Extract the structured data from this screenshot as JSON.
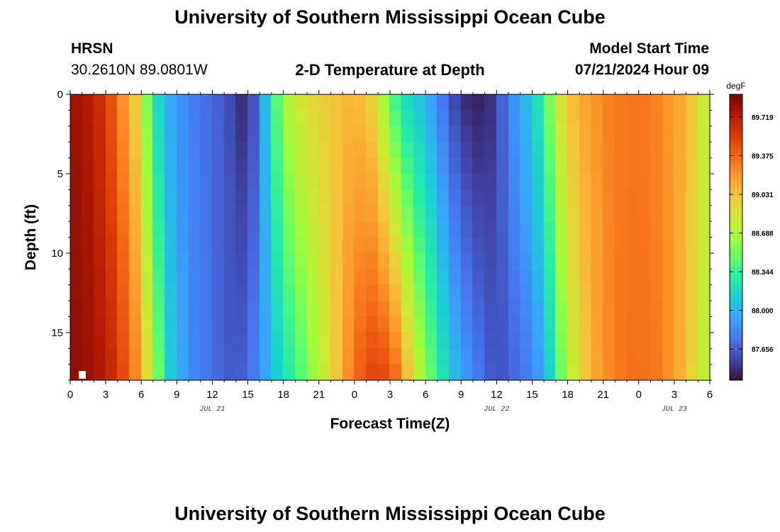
{
  "header": {
    "title": "University of Southern Mississippi Ocean Cube",
    "station": "HRSN",
    "coords": "30.2610N  89.0801W",
    "plot_title": "2-D Temperature at Depth",
    "model_label": "Model Start Time",
    "model_time": "07/21/2024 Hour 09"
  },
  "footer": {
    "title": "University of Southern Mississippi Ocean Cube"
  },
  "chart_data": {
    "type": "heatmap",
    "xlabel": "Forecast Time(Z)",
    "ylabel": "Depth (ft)",
    "xlim": [
      0,
      54
    ],
    "ylim": [
      18,
      0
    ],
    "x_ticks": [
      0,
      3,
      6,
      9,
      12,
      15,
      18,
      21,
      24,
      27,
      30,
      33,
      36,
      39,
      42,
      45,
      48,
      51,
      54
    ],
    "x_tick_labels": [
      "0",
      "3",
      "6",
      "9",
      "12",
      "15",
      "18",
      "21",
      "0",
      "3",
      "6",
      "9",
      "12",
      "15",
      "18",
      "21",
      "0",
      "3",
      "6"
    ],
    "y_ticks": [
      0,
      5,
      10,
      15
    ],
    "y_tick_labels": [
      "0",
      "5",
      "10",
      "15"
    ],
    "date_labels": [
      {
        "x": 12,
        "label": "JUL 21"
      },
      {
        "x": 36,
        "label": "JUL 22"
      },
      {
        "x": 51,
        "label": "JUL 23"
      }
    ],
    "colorbar": {
      "units": "degF",
      "min": 87.38,
      "max": 89.92,
      "tick_values": [
        89.719,
        89.375,
        89.031,
        88.688,
        88.344,
        88.0,
        87.656
      ],
      "tick_labels": [
        "89.719",
        "89.375",
        "89.031",
        "88.688",
        "88.344",
        "88.000",
        "87.656"
      ],
      "colors": [
        "#30123b",
        "#4145ab",
        "#4675ed",
        "#39a2fc",
        "#1bcfd4",
        "#24eca6",
        "#61fc6c",
        "#a4fc3b",
        "#d1e834",
        "#f3c63a",
        "#fe9b2d",
        "#f36315",
        "#d93806",
        "#b11901",
        "#7a0402"
      ]
    },
    "time_profile": [
      {
        "t": 0,
        "surface": 89.82,
        "bottom": 89.86
      },
      {
        "t": 2,
        "surface": 89.7,
        "bottom": 89.8
      },
      {
        "t": 3.5,
        "surface": 89.45,
        "bottom": 89.65
      },
      {
        "t": 5,
        "surface": 89.1,
        "bottom": 89.4
      },
      {
        "t": 6,
        "surface": 88.85,
        "bottom": 89.15
      },
      {
        "t": 6.5,
        "surface": 88.55,
        "bottom": 88.9
      },
      {
        "t": 7.5,
        "surface": 88.15,
        "bottom": 88.5
      },
      {
        "t": 8.5,
        "surface": 87.95,
        "bottom": 88.1
      },
      {
        "t": 10,
        "surface": 87.8,
        "bottom": 87.85
      },
      {
        "t": 12,
        "surface": 87.7,
        "bottom": 87.72
      },
      {
        "t": 14,
        "surface": 87.55,
        "bottom": 87.62
      },
      {
        "t": 15,
        "surface": 87.42,
        "bottom": 87.7
      },
      {
        "t": 16,
        "surface": 87.8,
        "bottom": 87.85
      },
      {
        "t": 17,
        "surface": 88.25,
        "bottom": 88.0
      },
      {
        "t": 18,
        "surface": 88.65,
        "bottom": 88.2
      },
      {
        "t": 20,
        "surface": 88.92,
        "bottom": 88.5
      },
      {
        "t": 22,
        "surface": 89.0,
        "bottom": 88.9
      },
      {
        "t": 24,
        "surface": 89.1,
        "bottom": 89.35
      },
      {
        "t": 25.5,
        "surface": 88.95,
        "bottom": 89.5
      },
      {
        "t": 27,
        "surface": 88.5,
        "bottom": 89.5
      },
      {
        "t": 28,
        "surface": 88.2,
        "bottom": 89.25
      },
      {
        "t": 29,
        "surface": 88.1,
        "bottom": 88.85
      },
      {
        "t": 30,
        "surface": 88.0,
        "bottom": 88.6
      },
      {
        "t": 32,
        "surface": 87.65,
        "bottom": 88.1
      },
      {
        "t": 33,
        "surface": 87.48,
        "bottom": 87.95
      },
      {
        "t": 35,
        "surface": 87.42,
        "bottom": 87.7
      },
      {
        "t": 36,
        "surface": 87.55,
        "bottom": 87.6
      },
      {
        "t": 37,
        "surface": 87.8,
        "bottom": 87.65
      },
      {
        "t": 39,
        "surface": 88.1,
        "bottom": 87.8
      },
      {
        "t": 40,
        "surface": 88.35,
        "bottom": 87.95
      },
      {
        "t": 41,
        "surface": 88.75,
        "bottom": 88.3
      },
      {
        "t": 42,
        "surface": 89.0,
        "bottom": 88.7
      },
      {
        "t": 44,
        "surface": 89.2,
        "bottom": 89.1
      },
      {
        "t": 46,
        "surface": 89.3,
        "bottom": 89.3
      },
      {
        "t": 48,
        "surface": 89.32,
        "bottom": 89.35
      },
      {
        "t": 50,
        "surface": 89.25,
        "bottom": 89.3
      },
      {
        "t": 52,
        "surface": 89.1,
        "bottom": 89.05
      },
      {
        "t": 53,
        "surface": 88.9,
        "bottom": 88.85
      },
      {
        "t": 54,
        "surface": 88.7,
        "bottom": 88.7
      }
    ]
  }
}
